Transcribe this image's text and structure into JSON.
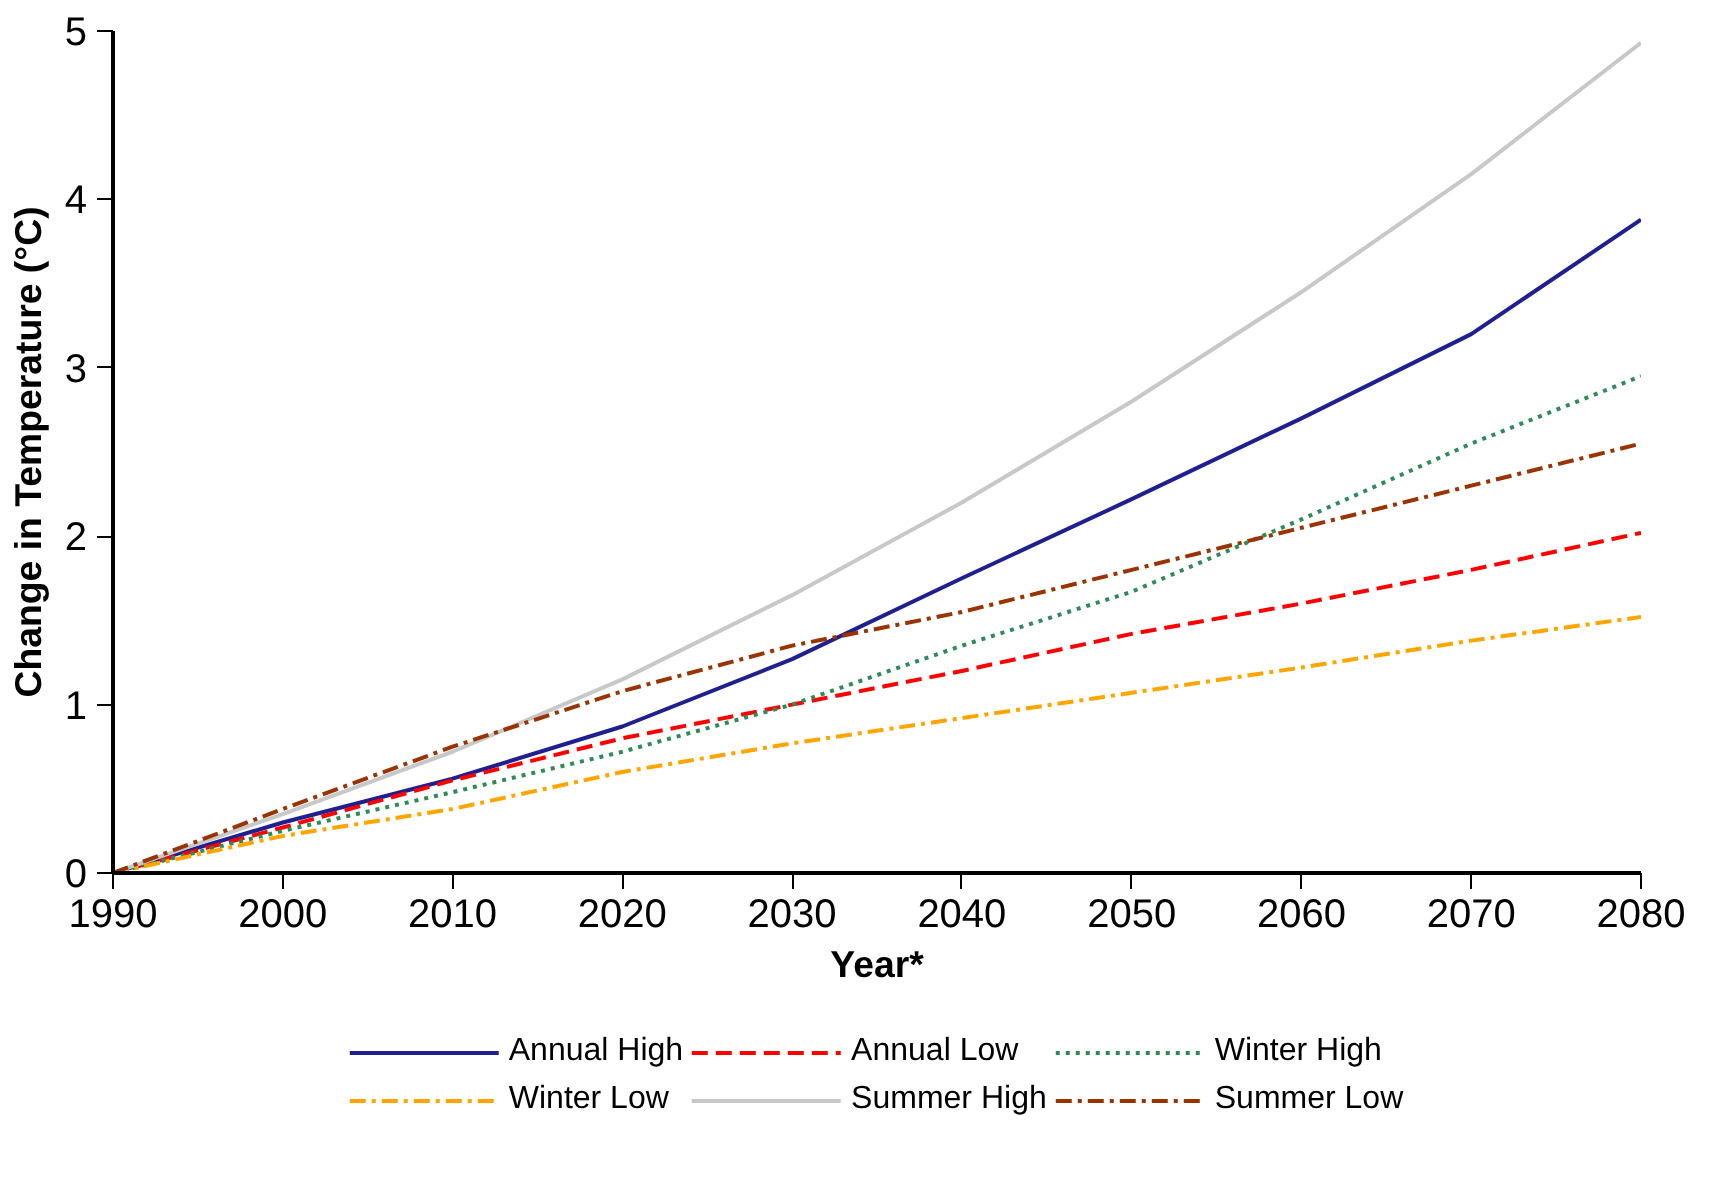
{
  "chart_data": {
    "type": "line",
    "xlabel": "Year*",
    "ylabel": "Change in Temperature (°C)",
    "x": [
      1990,
      2000,
      2010,
      2020,
      2030,
      2040,
      2050,
      2060,
      2070,
      2080
    ],
    "xlim": [
      1990,
      2080
    ],
    "xticks": [
      1990,
      2000,
      2010,
      2020,
      2030,
      2040,
      2050,
      2060,
      2070,
      2080
    ],
    "ylim": [
      0,
      5
    ],
    "yticks": [
      0,
      1,
      2,
      3,
      4,
      5
    ],
    "grid": false,
    "legend": "bottom",
    "marker": "none",
    "series": [
      {
        "name": "Annual High",
        "color": "#1f1f8f",
        "line_style": "solid",
        "values": [
          0,
          0.3,
          0.56,
          0.87,
          1.27,
          1.75,
          2.22,
          2.7,
          3.2,
          3.88
        ]
      },
      {
        "name": "Annual Low",
        "color": "#ff0000",
        "line_style": "dashed",
        "values": [
          0,
          0.27,
          0.55,
          0.8,
          1.0,
          1.2,
          1.42,
          1.6,
          1.8,
          2.02
        ]
      },
      {
        "name": "Winter High",
        "color": "#2e8b57",
        "line_style": "dotted",
        "values": [
          0,
          0.25,
          0.48,
          0.72,
          1.0,
          1.35,
          1.67,
          2.1,
          2.55,
          2.95
        ]
      },
      {
        "name": "Winter Low",
        "color": "#ffa500",
        "line_style": "dashdot",
        "values": [
          0,
          0.22,
          0.38,
          0.6,
          0.77,
          0.92,
          1.07,
          1.22,
          1.38,
          1.52
        ]
      },
      {
        "name": "Summer High",
        "color": "#c8c8c8",
        "line_style": "solid",
        "values": [
          0,
          0.35,
          0.72,
          1.15,
          1.65,
          2.2,
          2.8,
          3.45,
          4.15,
          4.93
        ]
      },
      {
        "name": "Summer Low",
        "color": "#993300",
        "line_style": "dashdot",
        "values": [
          0,
          0.38,
          0.75,
          1.08,
          1.35,
          1.55,
          1.8,
          2.05,
          2.3,
          2.55
        ]
      }
    ]
  }
}
